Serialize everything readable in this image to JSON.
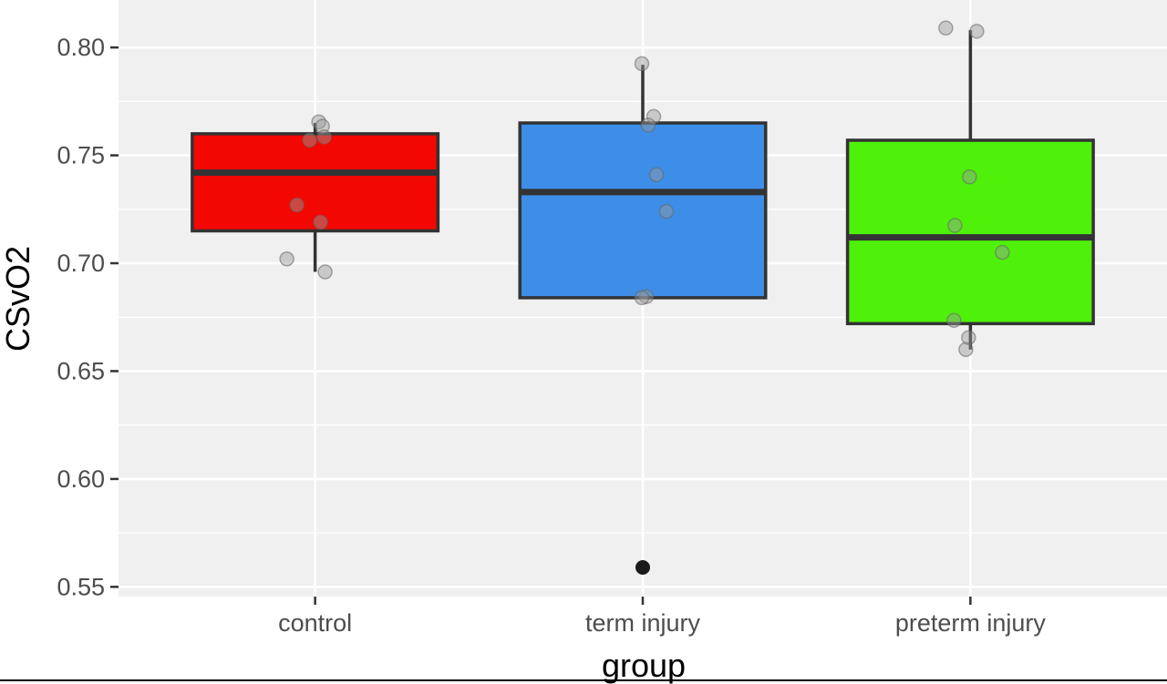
{
  "chart_data": {
    "type": "box",
    "xlabel": "group",
    "ylabel": "CSvO2",
    "ylim": [
      0.5455,
      0.822
    ],
    "yticks": [
      0.55,
      0.6,
      0.65,
      0.7,
      0.75,
      0.8
    ],
    "ytick_labels": [
      "0.55",
      "0.60",
      "0.65",
      "0.70",
      "0.75",
      "0.80"
    ],
    "grid": true,
    "legend": "none",
    "categories": [
      "control",
      "term injury",
      "preterm injury"
    ],
    "series": [
      {
        "category": "control",
        "color": "#f20800",
        "box": {
          "whisker_low": 0.696,
          "q1": 0.715,
          "median": 0.742,
          "q3": 0.76,
          "whisker_high": 0.765
        },
        "outliers": [],
        "points": [
          0.7655,
          0.7635,
          0.7585,
          0.757,
          0.727,
          0.719,
          0.702,
          0.696
        ]
      },
      {
        "category": "term injury",
        "color": "#3d8ee8",
        "box": {
          "whisker_low": 0.684,
          "q1": 0.684,
          "median": 0.733,
          "q3": 0.765,
          "whisker_high": 0.792
        },
        "outliers": [
          0.559
        ],
        "points": [
          0.7925,
          0.768,
          0.764,
          0.741,
          0.724,
          0.6845,
          0.684
        ]
      },
      {
        "category": "preterm injury",
        "color": "#4ff00a",
        "box": {
          "whisker_low": 0.66,
          "q1": 0.672,
          "median": 0.712,
          "q3": 0.757,
          "whisker_high": 0.808
        },
        "outliers": [],
        "points": [
          0.809,
          0.8075,
          0.74,
          0.7175,
          0.705,
          0.6735,
          0.6655,
          0.66
        ]
      }
    ]
  }
}
